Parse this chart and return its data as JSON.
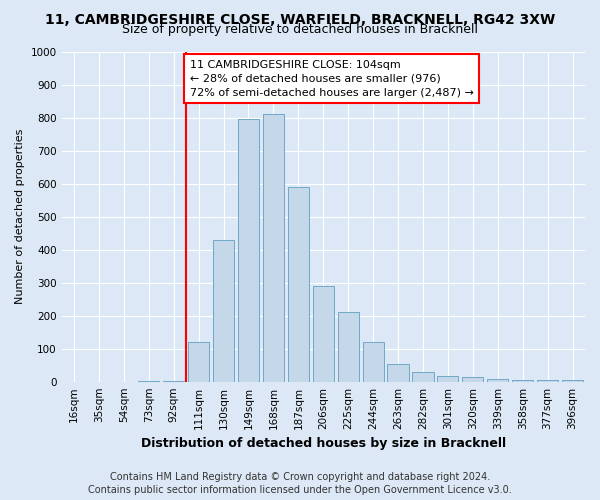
{
  "title": "11, CAMBRIDGESHIRE CLOSE, WARFIELD, BRACKNELL, RG42 3XW",
  "subtitle": "Size of property relative to detached houses in Bracknell",
  "xlabel": "Distribution of detached houses by size in Bracknell",
  "ylabel": "Number of detached properties",
  "footer_line1": "Contains HM Land Registry data © Crown copyright and database right 2024.",
  "footer_line2": "Contains public sector information licensed under the Open Government Licence v3.0.",
  "annotation_line1": "11 CAMBRIDGESHIRE CLOSE: 104sqm",
  "annotation_line2": "← 28% of detached houses are smaller (976)",
  "annotation_line3": "72% of semi-detached houses are larger (2,487) →",
  "bar_labels": [
    "16sqm",
    "35sqm",
    "54sqm",
    "73sqm",
    "92sqm",
    "111sqm",
    "130sqm",
    "149sqm",
    "168sqm",
    "187sqm",
    "206sqm",
    "225sqm",
    "244sqm",
    "263sqm",
    "282sqm",
    "301sqm",
    "320sqm",
    "339sqm",
    "358sqm",
    "377sqm",
    "396sqm"
  ],
  "bar_values": [
    0,
    0,
    0,
    2,
    3,
    120,
    430,
    795,
    810,
    590,
    290,
    210,
    120,
    55,
    28,
    18,
    13,
    8,
    4,
    4,
    4
  ],
  "bar_color": "#c5d8ea",
  "bar_edge_color": "#6fa8c8",
  "red_line_index": 5,
  "ylim": [
    0,
    1000
  ],
  "yticks": [
    0,
    100,
    200,
    300,
    400,
    500,
    600,
    700,
    800,
    900,
    1000
  ],
  "background_color": "#dce8f5",
  "plot_bg_color": "#dce8f5",
  "title_fontsize": 10,
  "subtitle_fontsize": 9,
  "ylabel_fontsize": 8,
  "xlabel_fontsize": 9,
  "tick_fontsize": 7.5,
  "footer_fontsize": 7,
  "annotation_fontsize": 8
}
